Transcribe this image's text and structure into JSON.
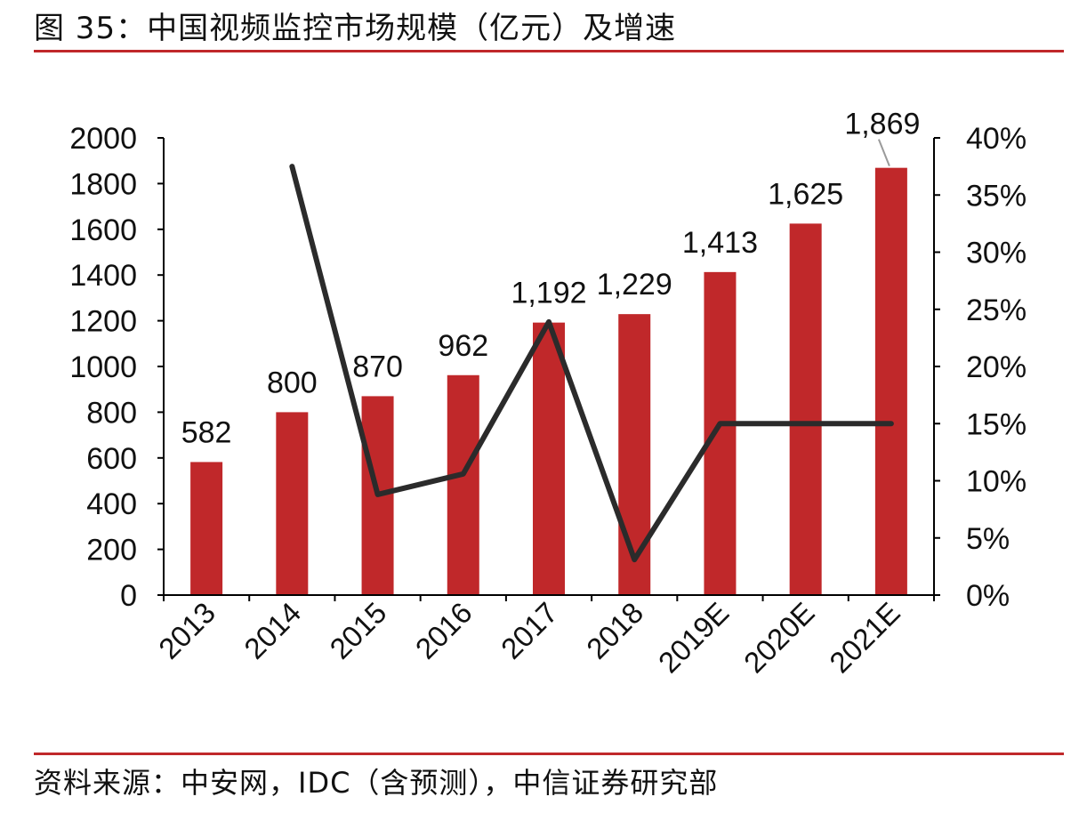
{
  "figure": {
    "title": "图 35：中国视频监控市场规模（亿元）及增速",
    "source": "资料来源：中安网，IDC（含预测），中信证券研究部"
  },
  "colors": {
    "bar": "#c0282a",
    "line": "#2b2b2b",
    "rule": "#c0282a",
    "axis": "#000000"
  },
  "chart_data": {
    "type": "bar",
    "categories": [
      "2013",
      "2014",
      "2015",
      "2016",
      "2017",
      "2018",
      "2019E",
      "2020E",
      "2021E"
    ],
    "series": [
      {
        "type": "bar",
        "axis": "left",
        "values": [
          582,
          800,
          870,
          962,
          1192,
          1229,
          1413,
          1625,
          1869
        ],
        "data_labels": [
          "582",
          "800",
          "870",
          "962",
          "1,192",
          "1,229",
          "1,413",
          "1,625",
          "1,869"
        ]
      },
      {
        "type": "line",
        "axis": "right",
        "values": [
          null,
          37.5,
          8.8,
          10.6,
          23.9,
          3.1,
          15.0,
          15.0,
          15.0
        ]
      }
    ],
    "y_left": {
      "min": 0,
      "max": 2000,
      "ticks": [
        "0",
        "200",
        "400",
        "600",
        "800",
        "1000",
        "1200",
        "1400",
        "1600",
        "1800",
        "2000"
      ]
    },
    "y_right": {
      "min": 0,
      "max": 40,
      "ticks": [
        "0%",
        "5%",
        "10%",
        "15%",
        "20%",
        "25%",
        "30%",
        "35%",
        "40%"
      ]
    },
    "grid": false,
    "legend": "none"
  }
}
